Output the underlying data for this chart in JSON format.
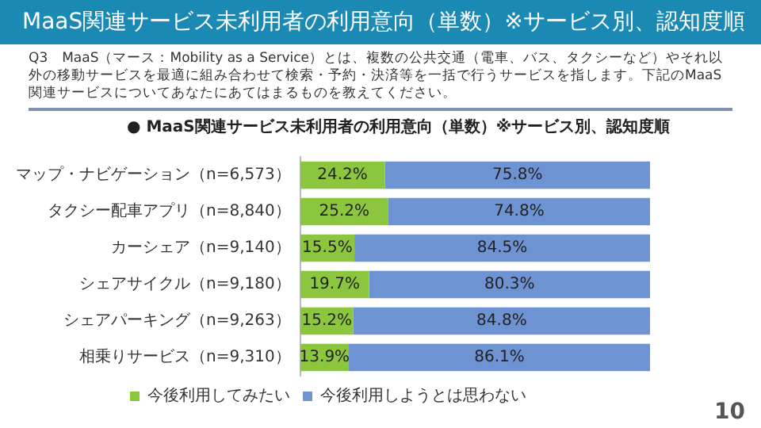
{
  "chart_data": {
    "type": "bar",
    "orientation": "horizontal",
    "stacked": true,
    "title": "MaaS関連サービス未利用者の利用意向（単数）※サービス別、認知度順",
    "subtitle": "Q3　MaaS（マース：Mobility as a Service）とは、複数の公共交通（電車、バス、タクシーなど）やそれ以外の移動サービスを最適に組み合わせて検索・予約・決済等を一括で行うサービスを指します。下記のMaaS関連サービスについてあなたにあてはまるものを教えてください。",
    "annotations": [
      "● MaaS関連サービス未利用者の利用意向（単数）※サービス別、認知度順",
      "10"
    ],
    "categories": [
      "マップ・ナビゲーション（n=6,573）",
      "タクシー配車アプリ（n=8,840）",
      "カーシェア（n=9,140）",
      "シェアサイクル（n=9,180）",
      "シェアパーキング（n=9,263）",
      "相乗りサービス（n=9,310）"
    ],
    "series": [
      {
        "name": "今後利用してみたい",
        "color": "#8cc63e",
        "values": [
          24.2,
          25.2,
          15.5,
          19.7,
          15.2,
          13.9
        ],
        "value_labels": [
          "24.2%",
          "25.2%",
          "15.5%",
          "19.7%",
          "15.2%",
          "13.9%"
        ]
      },
      {
        "name": "今後利用しようとは思わない",
        "color": "#6e93d2",
        "values": [
          75.8,
          74.8,
          84.5,
          80.3,
          84.8,
          86.1
        ],
        "value_labels": [
          "75.8%",
          "74.8%",
          "84.5%",
          "80.3%",
          "84.8%",
          "86.1%"
        ]
      }
    ],
    "legend": "bottom",
    "grid": false,
    "tick_labels": "y"
  }
}
